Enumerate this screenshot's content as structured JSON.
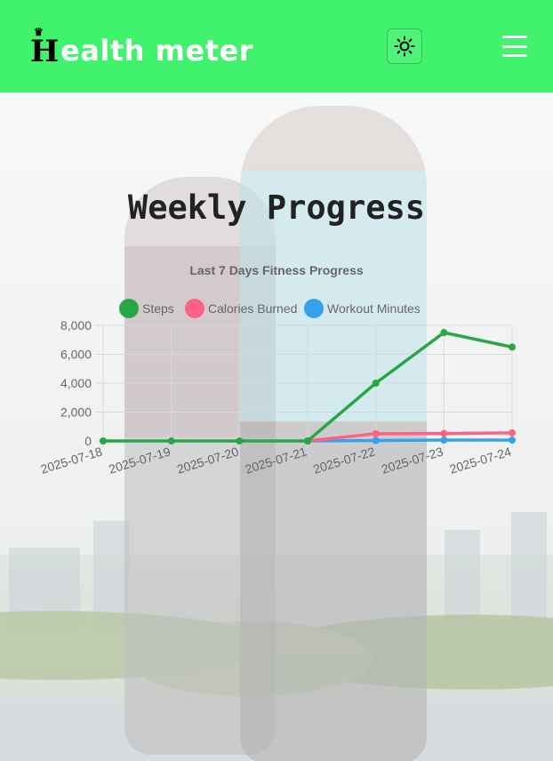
{
  "header": {
    "logo_initial": "H",
    "logo_rest": "ealth meter",
    "crown": "♛",
    "theme_toggle_icon": "sun-icon",
    "menu_icon": "hamburger-menu-icon",
    "bg_color": "#41f26c"
  },
  "main": {
    "title": "Weekly Progress"
  },
  "chart_data": {
    "type": "line",
    "title": "Last 7 Days Fitness Progress",
    "categories": [
      "2025-07-18",
      "2025-07-19",
      "2025-07-20",
      "2025-07-21",
      "2025-07-22",
      "2025-07-23",
      "2025-07-24"
    ],
    "series": [
      {
        "name": "Steps",
        "color": "#28a745",
        "values": [
          0,
          0,
          0,
          0,
          4000,
          7500,
          6500
        ]
      },
      {
        "name": "Calories Burned",
        "color": "#ff6384",
        "values": [
          null,
          null,
          null,
          0,
          500,
          520,
          560
        ]
      },
      {
        "name": "Workout Minutes",
        "color": "#36a2eb",
        "values": [
          null,
          null,
          null,
          0,
          30,
          60,
          60
        ]
      }
    ],
    "yticks": [
      "8,000",
      "6,000",
      "4,000",
      "2,000",
      "0"
    ],
    "ylim": [
      0,
      8000
    ],
    "grid": true,
    "legend": "top"
  }
}
